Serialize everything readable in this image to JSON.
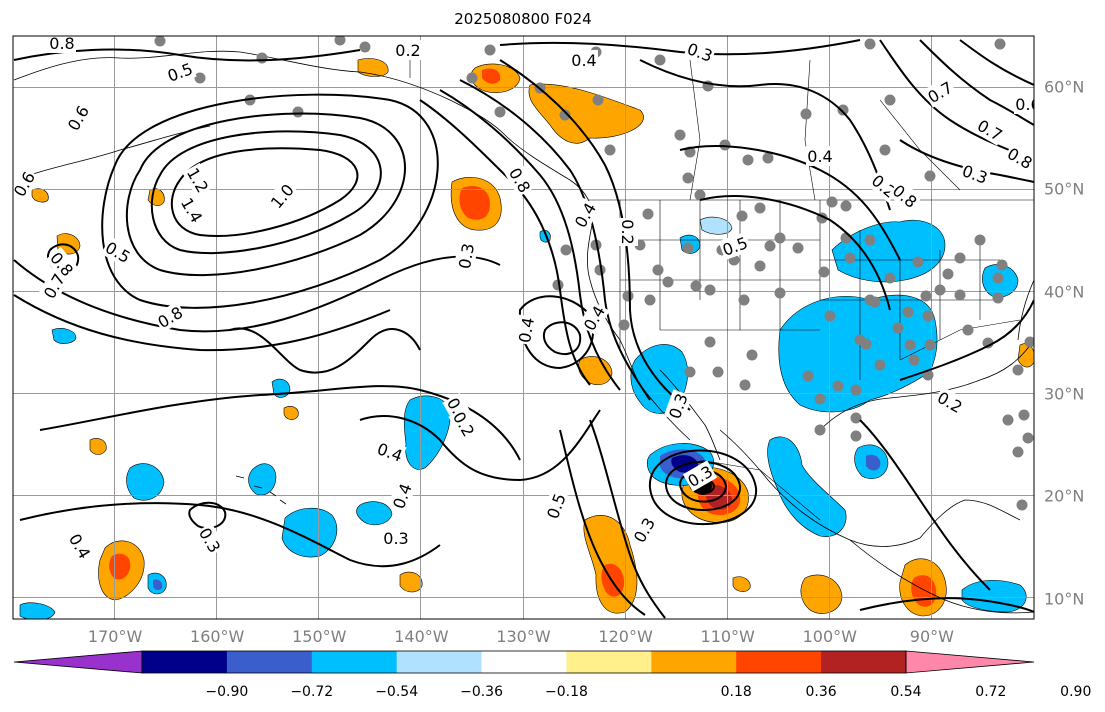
{
  "title": "2025080800 F024",
  "longitude_labels": [
    {
      "label": "170°W",
      "lon": -170
    },
    {
      "label": "160°W",
      "lon": -160
    },
    {
      "label": "150°W",
      "lon": -150
    },
    {
      "label": "140°W",
      "lon": -140
    },
    {
      "label": "130°W",
      "lon": -130
    },
    {
      "label": "120°W",
      "lon": -120
    },
    {
      "label": "110°W",
      "lon": -110
    },
    {
      "label": "100°W",
      "lon": -100
    },
    {
      "label": "90°W",
      "lon": -90
    }
  ],
  "latitude_labels": [
    {
      "label": "60°N",
      "lat": 60
    },
    {
      "label": "50°N",
      "lat": 50
    },
    {
      "label": "40°N",
      "lat": 40
    },
    {
      "label": "30°N",
      "lat": 30
    },
    {
      "label": "20°N",
      "lat": 20
    },
    {
      "label": "10°N",
      "lat": 10
    }
  ],
  "colorbar": {
    "ticks": [
      "−0.90",
      "−0.72",
      "−0.54",
      "−0.36",
      "−0.18",
      "0.18",
      "0.36",
      "0.54",
      "0.72",
      "0.90"
    ],
    "colors": [
      "#9932cc",
      "#00008b",
      "#3a5fcd",
      "#00bfff",
      "#b0e2ff",
      "#ffffff",
      "#fff08c",
      "#ffa500",
      "#ff4500",
      "#b22222",
      "#ff88aa"
    ],
    "extend": "both"
  },
  "contour_labels": [
    "0.8",
    "0.5",
    "0.6",
    "0.2",
    "0.4",
    "0.3",
    "0.7",
    "0.7",
    "0.8",
    "0.6",
    "1.2",
    "1.4",
    "1.0",
    "0.5",
    "0.8",
    "0.7",
    "0.8",
    "0.6",
    "0.3",
    "0.8",
    "0.4",
    "0.2",
    "0.5",
    "0.4",
    "0.2",
    "0.8",
    "0.3",
    "0.4",
    "0.4",
    "0.6",
    "0.4",
    "0.4",
    "0.2",
    "0.5",
    "0.3",
    "0.3",
    "0.3",
    "0.3",
    "0.2",
    "0.4",
    "0.3"
  ],
  "map_extent": {
    "lon_min": -180,
    "lon_max": -80,
    "lat_min": 8,
    "lat_max": 65
  },
  "features": {
    "gridlines": true,
    "coastlines": true,
    "state_borders": true,
    "station_markers": "gray dots",
    "cyclone_center_marker": "black dot"
  }
}
